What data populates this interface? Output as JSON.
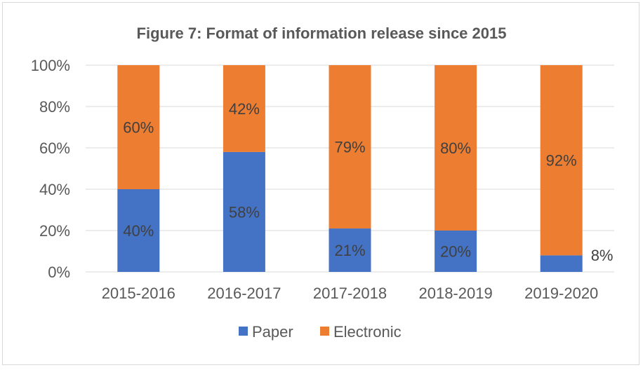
{
  "chart_data": {
    "type": "bar",
    "stacked": true,
    "title": "Figure 7: Format of information release since 2015",
    "categories": [
      "2015-2016",
      "2016-2017",
      "2017-2018",
      "2018-2019",
      "2019-2020"
    ],
    "series": [
      {
        "name": "Paper",
        "color": "#4472C4",
        "values": [
          40,
          58,
          21,
          20,
          8
        ],
        "labels": [
          "40%",
          "58%",
          "21%",
          "20%",
          "8%"
        ]
      },
      {
        "name": "Electronic",
        "color": "#ED7D31",
        "values": [
          60,
          42,
          79,
          80,
          92
        ],
        "labels": [
          "60%",
          "42%",
          "79%",
          "80%",
          "92%"
        ]
      }
    ],
    "ylim": [
      0,
      100
    ],
    "yticks": [
      "0%",
      "20%",
      "40%",
      "60%",
      "80%",
      "100%"
    ],
    "grid": true,
    "legend": "bottom",
    "xlabel": "",
    "ylabel": ""
  }
}
